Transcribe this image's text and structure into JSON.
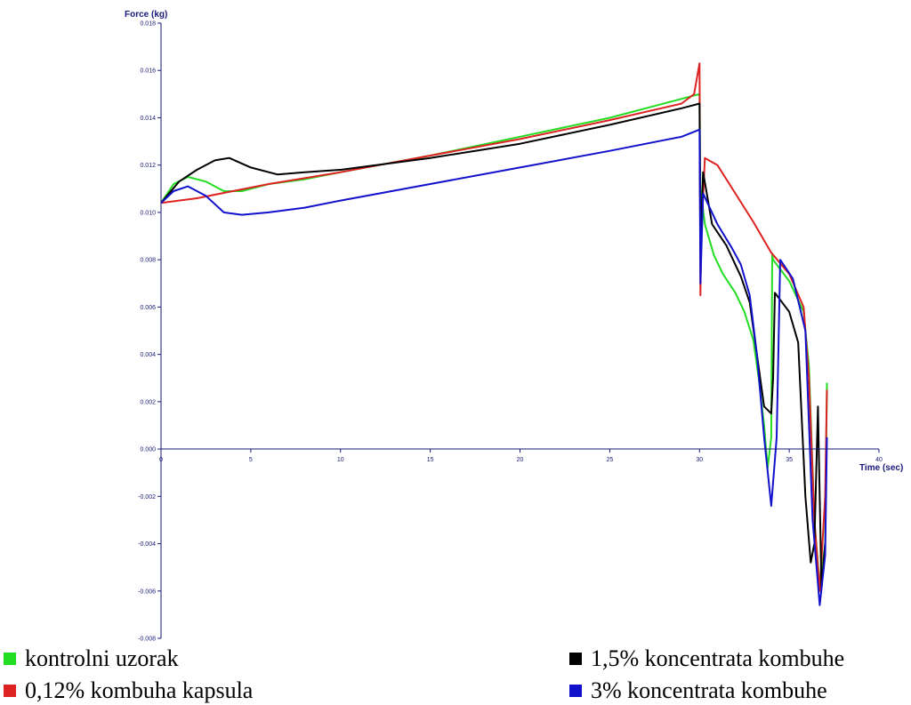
{
  "chart_data": {
    "type": "line",
    "xlabel": "Time (sec)",
    "ylabel": "Force (kg)",
    "xlim": [
      0,
      40
    ],
    "ylim": [
      -0.008,
      0.018
    ],
    "x_ticks": [
      {
        "value": 0,
        "label": "0"
      },
      {
        "value": 5,
        "label": "5"
      },
      {
        "value": 10,
        "label": "10"
      },
      {
        "value": 15,
        "label": "15"
      },
      {
        "value": 20,
        "label": "20"
      },
      {
        "value": 25,
        "label": "25"
      },
      {
        "value": 30,
        "label": "30"
      },
      {
        "value": 35,
        "label": "35"
      },
      {
        "value": 40,
        "label": "40"
      }
    ],
    "y_ticks": [
      {
        "value": 0.018,
        "label": "0.018"
      },
      {
        "value": 0.016,
        "label": "0.016"
      },
      {
        "value": 0.014,
        "label": "0.014"
      },
      {
        "value": 0.012,
        "label": "0.012"
      },
      {
        "value": 0.01,
        "label": "0.010"
      },
      {
        "value": 0.008,
        "label": "0.008"
      },
      {
        "value": 0.006,
        "label": "0.006"
      },
      {
        "value": 0.004,
        "label": "0.004"
      },
      {
        "value": 0.002,
        "label": "0.002"
      },
      {
        "value": 0.0,
        "label": "0.000"
      },
      {
        "value": -0.002,
        "label": "-0.002"
      },
      {
        "value": -0.004,
        "label": "-0.004"
      },
      {
        "value": -0.006,
        "label": "-0.006"
      },
      {
        "value": -0.008,
        "label": "-0.008"
      }
    ],
    "grid": false,
    "legend_position": "bottom",
    "series": [
      {
        "name": "kontrolni uzorak",
        "color": "#22dd22",
        "points": [
          [
            0,
            0.0104
          ],
          [
            0.7,
            0.0112
          ],
          [
            1.5,
            0.0115
          ],
          [
            2.5,
            0.0113
          ],
          [
            3.5,
            0.0109
          ],
          [
            4.5,
            0.0109
          ],
          [
            6,
            0.0112
          ],
          [
            8,
            0.0114
          ],
          [
            10,
            0.0117
          ],
          [
            15,
            0.0124
          ],
          [
            20,
            0.0132
          ],
          [
            25,
            0.014
          ],
          [
            29,
            0.0148
          ],
          [
            30,
            0.015
          ],
          [
            30.05,
            0.011
          ],
          [
            30.3,
            0.0095
          ],
          [
            30.8,
            0.0082
          ],
          [
            31.3,
            0.0074
          ],
          [
            32,
            0.0066
          ],
          [
            32.5,
            0.0058
          ],
          [
            33,
            0.0046
          ],
          [
            33.3,
            0.003
          ],
          [
            33.6,
            0.001
          ],
          [
            33.8,
            -0.0008
          ],
          [
            34.0,
            0.0005
          ],
          [
            34.05,
            0.0082
          ],
          [
            34.1,
            0.008
          ],
          [
            35,
            0.0071
          ],
          [
            35.8,
            0.0058
          ],
          [
            36.1,
            0.0035
          ],
          [
            36.4,
            -0.003
          ],
          [
            36.7,
            -0.0058
          ],
          [
            36.85,
            -0.005
          ],
          [
            37.0,
            -0.004
          ],
          [
            37.1,
            0.0028
          ]
        ]
      },
      {
        "name": "0,12% kombuha kapsula",
        "color": "#dd2222",
        "points": [
          [
            0,
            0.0104
          ],
          [
            2,
            0.0106
          ],
          [
            4,
            0.0109
          ],
          [
            6,
            0.0112
          ],
          [
            10,
            0.0117
          ],
          [
            15,
            0.0124
          ],
          [
            20,
            0.0131
          ],
          [
            25,
            0.0139
          ],
          [
            29,
            0.0146
          ],
          [
            29.7,
            0.015
          ],
          [
            30,
            0.0163
          ],
          [
            30.05,
            0.0065
          ],
          [
            30.1,
            0.009
          ],
          [
            30.3,
            0.0123
          ],
          [
            31,
            0.012
          ],
          [
            32,
            0.0108
          ],
          [
            33,
            0.0096
          ],
          [
            34,
            0.0083
          ],
          [
            35,
            0.0074
          ],
          [
            35.8,
            0.006
          ],
          [
            36.1,
            0.003
          ],
          [
            36.4,
            -0.003
          ],
          [
            36.7,
            -0.006
          ],
          [
            37.0,
            -0.002
          ],
          [
            37.1,
            0.0025
          ]
        ]
      },
      {
        "name": "1,5% koncentrata kombuhe",
        "color": "#000000",
        "points": [
          [
            0,
            0.0104
          ],
          [
            1,
            0.0113
          ],
          [
            2,
            0.0118
          ],
          [
            3,
            0.0122
          ],
          [
            3.8,
            0.0123
          ],
          [
            5,
            0.0119
          ],
          [
            6.5,
            0.0116
          ],
          [
            8,
            0.0117
          ],
          [
            10,
            0.0118
          ],
          [
            15,
            0.0123
          ],
          [
            20,
            0.0129
          ],
          [
            25,
            0.0137
          ],
          [
            29,
            0.0144
          ],
          [
            30,
            0.0146
          ],
          [
            30.05,
            0.0085
          ],
          [
            30.2,
            0.0117
          ],
          [
            30.7,
            0.0095
          ],
          [
            31.5,
            0.0086
          ],
          [
            32.3,
            0.0073
          ],
          [
            32.8,
            0.0062
          ],
          [
            33.2,
            0.004
          ],
          [
            33.6,
            0.0018
          ],
          [
            34.0,
            0.0015
          ],
          [
            34.1,
            0.003
          ],
          [
            34.2,
            0.0066
          ],
          [
            35,
            0.0058
          ],
          [
            35.5,
            0.0045
          ],
          [
            35.9,
            -0.002
          ],
          [
            36.2,
            -0.0048
          ],
          [
            36.4,
            -0.004
          ],
          [
            36.6,
            0.0018
          ],
          [
            36.8,
            -0.0059
          ],
          [
            37.0,
            -0.004
          ]
        ]
      },
      {
        "name": "3% koncentrata kombuhe",
        "color": "#1111cc",
        "points": [
          [
            0,
            0.0104
          ],
          [
            0.7,
            0.0109
          ],
          [
            1.5,
            0.0111
          ],
          [
            2.5,
            0.0107
          ],
          [
            3.5,
            0.01
          ],
          [
            4.5,
            0.0099
          ],
          [
            6,
            0.01
          ],
          [
            8,
            0.0102
          ],
          [
            10,
            0.0105
          ],
          [
            15,
            0.0112
          ],
          [
            20,
            0.0119
          ],
          [
            25,
            0.0126
          ],
          [
            29,
            0.0132
          ],
          [
            30,
            0.0135
          ],
          [
            30.05,
            0.007
          ],
          [
            30.2,
            0.0108
          ],
          [
            31,
            0.0095
          ],
          [
            31.8,
            0.0085
          ],
          [
            32.3,
            0.0078
          ],
          [
            32.8,
            0.0065
          ],
          [
            33.2,
            0.004
          ],
          [
            33.6,
            0.0005
          ],
          [
            34.0,
            -0.0024
          ],
          [
            34.3,
            0.0005
          ],
          [
            34.5,
            0.008
          ],
          [
            35.2,
            0.0072
          ],
          [
            35.9,
            0.005
          ],
          [
            36.3,
            -0.003
          ],
          [
            36.7,
            -0.0066
          ],
          [
            37.0,
            -0.0045
          ],
          [
            37.1,
            0.0005
          ]
        ]
      }
    ]
  },
  "legend": {
    "items": [
      {
        "label": "kontrolni uzorak",
        "color": "#22dd22"
      },
      {
        "label": "0,12% kombuha kapsula",
        "color": "#dd2222"
      },
      {
        "label": "1,5% koncentrata kombuhe",
        "color": "#000000"
      },
      {
        "label": "3% koncentrata kombuhe",
        "color": "#1111cc"
      }
    ]
  }
}
